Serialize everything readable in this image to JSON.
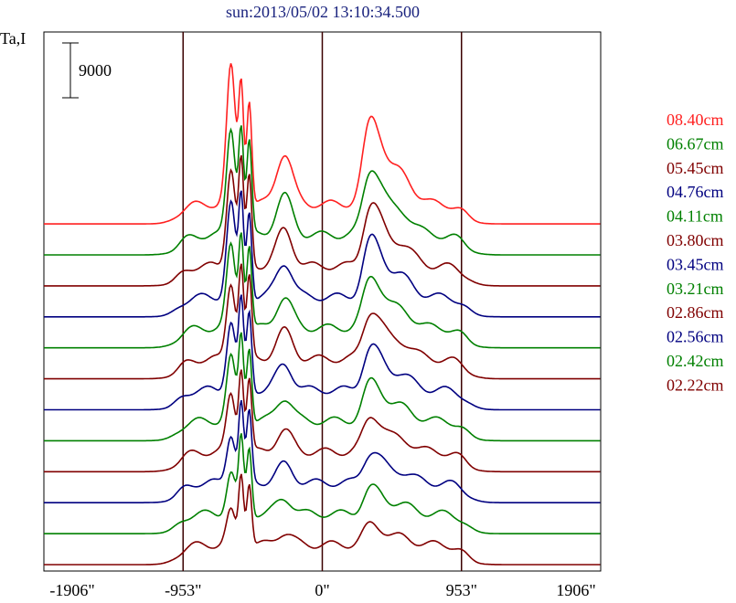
{
  "chart_data": {
    "type": "line",
    "title": "sun:2013/05/02 13:10:34.500",
    "ylabel": "Ta,I",
    "xlabel": "",
    "x_ticks": [
      -1906,
      -953,
      0,
      953,
      1906
    ],
    "x_tick_labels": [
      "-1906\"",
      "-953\"",
      "0\"",
      "953\"",
      "1906\""
    ],
    "xlim": [
      -1906,
      1906
    ],
    "vertical_lines": [
      -953,
      0,
      953
    ],
    "scale_bar": {
      "value": 9000,
      "label": "9000"
    },
    "series": [
      {
        "name": "08.40cm",
        "color": "#ff2020",
        "offset": 11,
        "amp": 1.0
      },
      {
        "name": "06.67cm",
        "color": "#008000",
        "offset": 10,
        "amp": 0.78
      },
      {
        "name": "05.45cm",
        "color": "#800000",
        "offset": 9,
        "amp": 0.72
      },
      {
        "name": "04.76cm",
        "color": "#000080",
        "offset": 8,
        "amp": 0.68
      },
      {
        "name": "04.11cm",
        "color": "#008000",
        "offset": 7,
        "amp": 0.6
      },
      {
        "name": "03.80cm",
        "color": "#800000",
        "offset": 6,
        "amp": 0.56
      },
      {
        "name": "03.45cm",
        "color": "#000080",
        "offset": 5,
        "amp": 0.5
      },
      {
        "name": "03.21cm",
        "color": "#008000",
        "offset": 4,
        "amp": 0.46
      },
      {
        "name": "02.86cm",
        "color": "#800000",
        "offset": 3,
        "amp": 0.42
      },
      {
        "name": "02.56cm",
        "color": "#000080",
        "offset": 2,
        "amp": 0.36
      },
      {
        "name": "02.42cm",
        "color": "#008000",
        "offset": 1,
        "amp": 0.3
      },
      {
        "name": "02.22cm",
        "color": "#800000",
        "offset": 0,
        "amp": 0.24
      }
    ]
  }
}
